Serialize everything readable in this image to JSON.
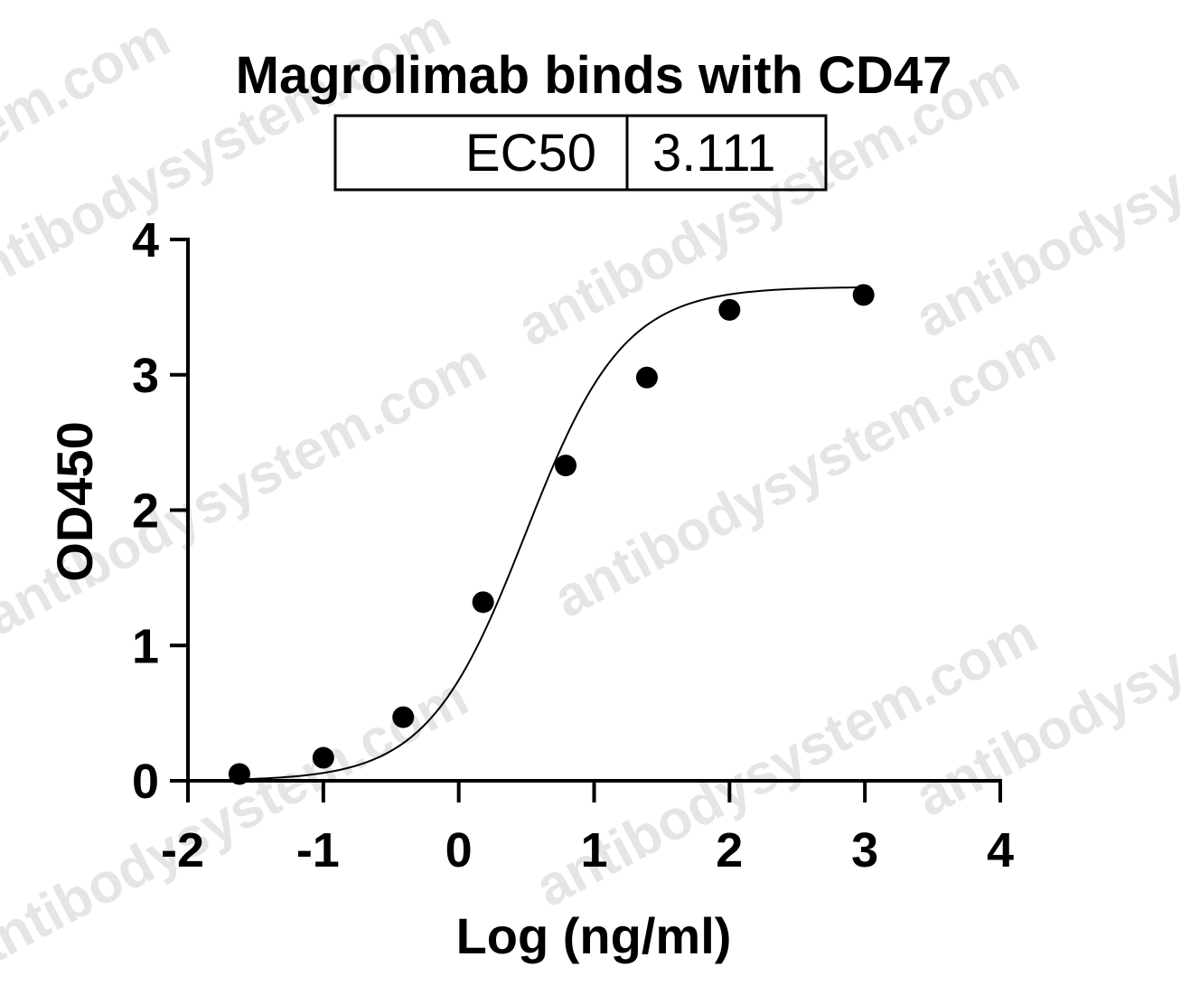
{
  "watermark": "antibodysystem.com",
  "chart_data": {
    "type": "scatter",
    "title": "Magrolimab binds with CD47",
    "xlabel": "Log (ng/ml)",
    "ylabel": "OD450",
    "xlim": [
      -2,
      4
    ],
    "ylim": [
      0,
      4
    ],
    "x_ticks": [
      -2,
      -1,
      0,
      1,
      2,
      3,
      4
    ],
    "y_ticks": [
      0,
      1,
      2,
      3,
      4
    ],
    "x_tick_labels": [
      "-2",
      "-1",
      "0",
      "1",
      "2",
      "3",
      "4"
    ],
    "y_tick_labels": [
      "0",
      "1",
      "2",
      "3",
      "4"
    ],
    "grid": false,
    "points": [
      {
        "x": -1.62,
        "y": 0.05
      },
      {
        "x": -1.0,
        "y": 0.17
      },
      {
        "x": -0.41,
        "y": 0.47
      },
      {
        "x": 0.18,
        "y": 1.32
      },
      {
        "x": 0.79,
        "y": 2.33
      },
      {
        "x": 1.39,
        "y": 2.98
      },
      {
        "x": 2.0,
        "y": 3.48
      },
      {
        "x": 2.99,
        "y": 3.59
      }
    ],
    "fit": {
      "model": "4PL",
      "bottom": 0.0,
      "top": 3.65,
      "log_ec50": 0.493,
      "hill": 1.2,
      "x_range": [
        -1.62,
        3.0
      ]
    },
    "ec50_table": {
      "label": "EC50",
      "value": "3.111"
    }
  }
}
